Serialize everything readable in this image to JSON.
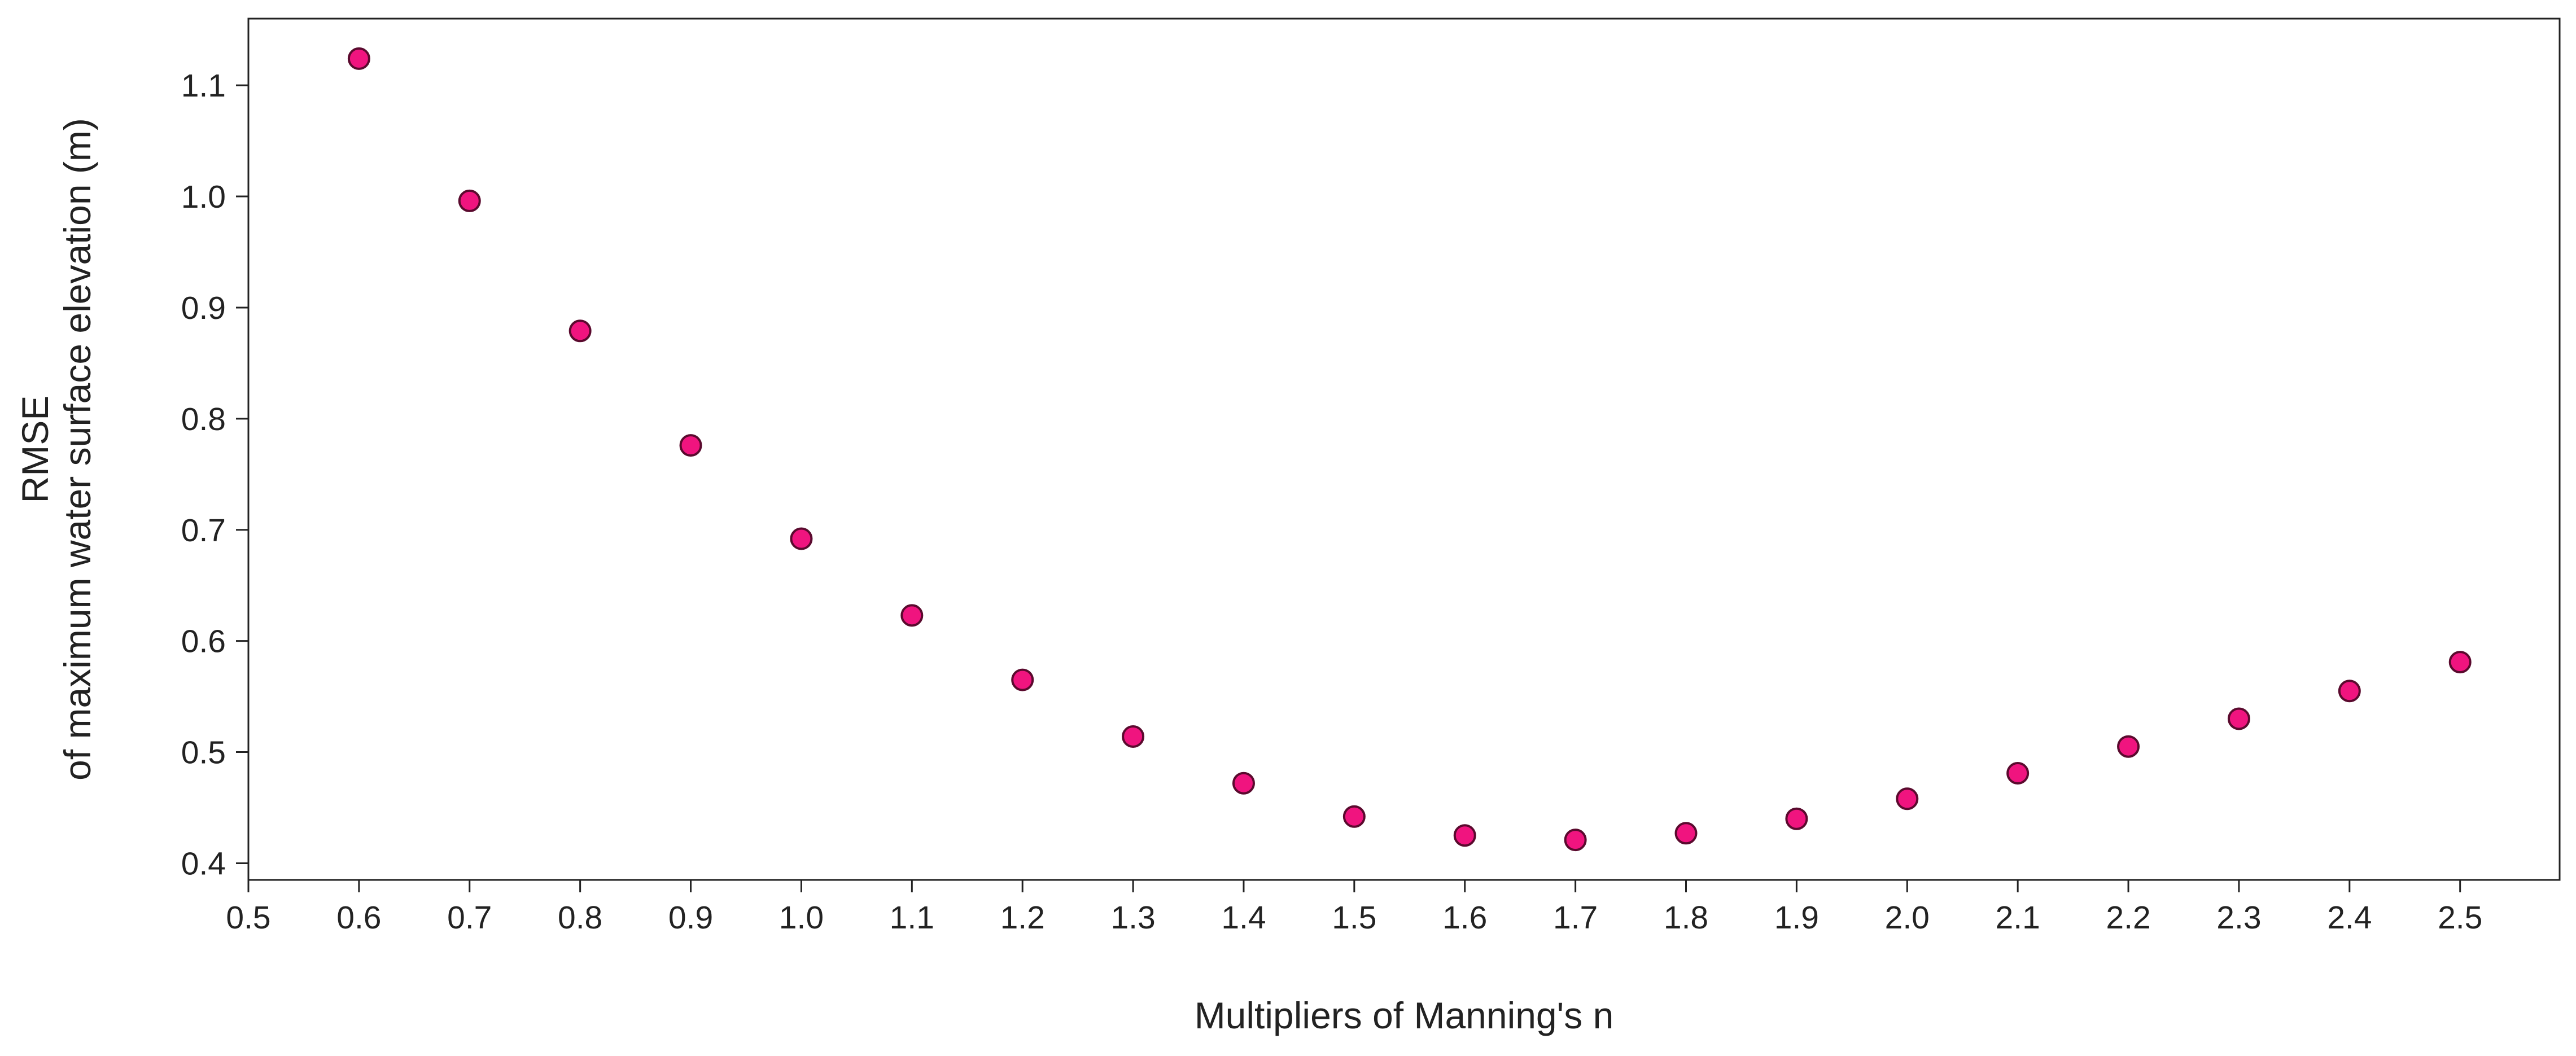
{
  "chart_data": {
    "type": "scatter",
    "xlabel": "Multipliers of Manning's n",
    "ylabel_lines": [
      "RMSE",
      "of maximum water surface elevation (m)"
    ],
    "xlim": [
      0.5,
      2.59
    ],
    "ylim": [
      0.385,
      1.16
    ],
    "x_ticks": [
      "0.5",
      "0.6",
      "0.7",
      "0.8",
      "0.9",
      "1.0",
      "1.1",
      "1.2",
      "1.3",
      "1.4",
      "1.5",
      "1.6",
      "1.7",
      "1.8",
      "1.9",
      "2.0",
      "2.1",
      "2.2",
      "2.3",
      "2.4",
      "2.5"
    ],
    "y_ticks": [
      "0.4",
      "0.5",
      "0.6",
      "0.7",
      "0.8",
      "0.9",
      "1.0",
      "1.1"
    ],
    "grid": false,
    "marker_color": "#F0147F",
    "marker_edge_color": "#5a0a2e",
    "series": [
      {
        "x": [
          0.6,
          0.7,
          0.8,
          0.9,
          1.0,
          1.1,
          1.2,
          1.3,
          1.4,
          1.5,
          1.6,
          1.7,
          1.8,
          1.9,
          2.0,
          2.1,
          2.2,
          2.3,
          2.4,
          2.5
        ],
        "y": [
          1.124,
          0.996,
          0.879,
          0.776,
          0.692,
          0.623,
          0.565,
          0.514,
          0.472,
          0.442,
          0.425,
          0.421,
          0.427,
          0.44,
          0.458,
          0.481,
          0.505,
          0.53,
          0.555,
          0.581
        ]
      }
    ]
  }
}
